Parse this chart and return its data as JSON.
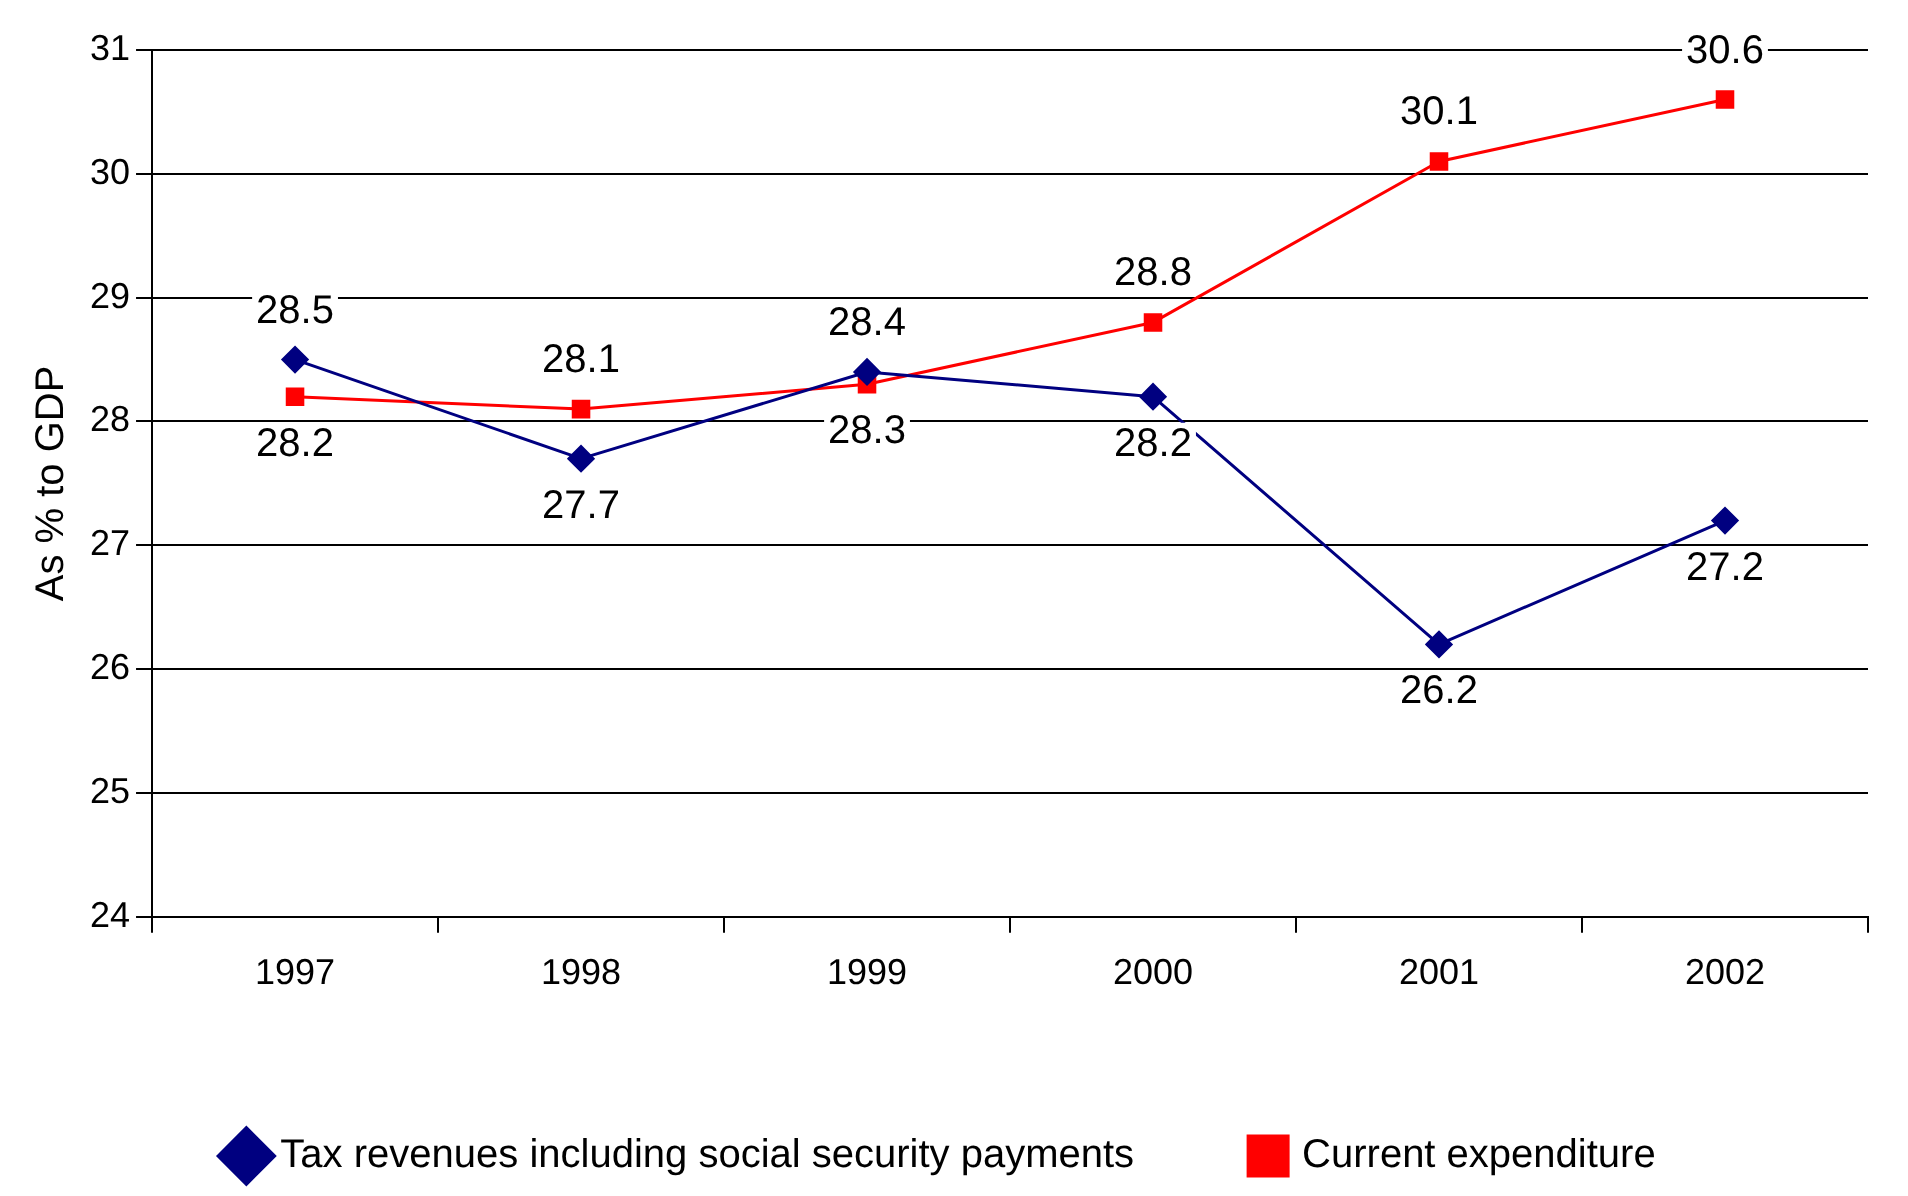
{
  "chart_data": {
    "type": "line",
    "ylabel": "As % to GDP",
    "categories": [
      "1997",
      "1998",
      "1999",
      "2000",
      "2001",
      "2002"
    ],
    "series": [
      {
        "name": "Tax revenues including social security payments",
        "color": "#000080",
        "marker": "diamond",
        "values": [
          28.5,
          27.7,
          28.4,
          28.2,
          26.2,
          27.2
        ]
      },
      {
        "name": "Current expenditure",
        "color": "#ff0000",
        "marker": "square",
        "values": [
          28.2,
          28.1,
          28.3,
          28.8,
          30.1,
          30.6
        ]
      }
    ],
    "ylim": [
      24,
      31
    ],
    "yticks": [
      24,
      25,
      26,
      27,
      28,
      29,
      30,
      31
    ],
    "grid": "y",
    "legend": "bottom",
    "data_labels": true,
    "line_style": "solid"
  }
}
